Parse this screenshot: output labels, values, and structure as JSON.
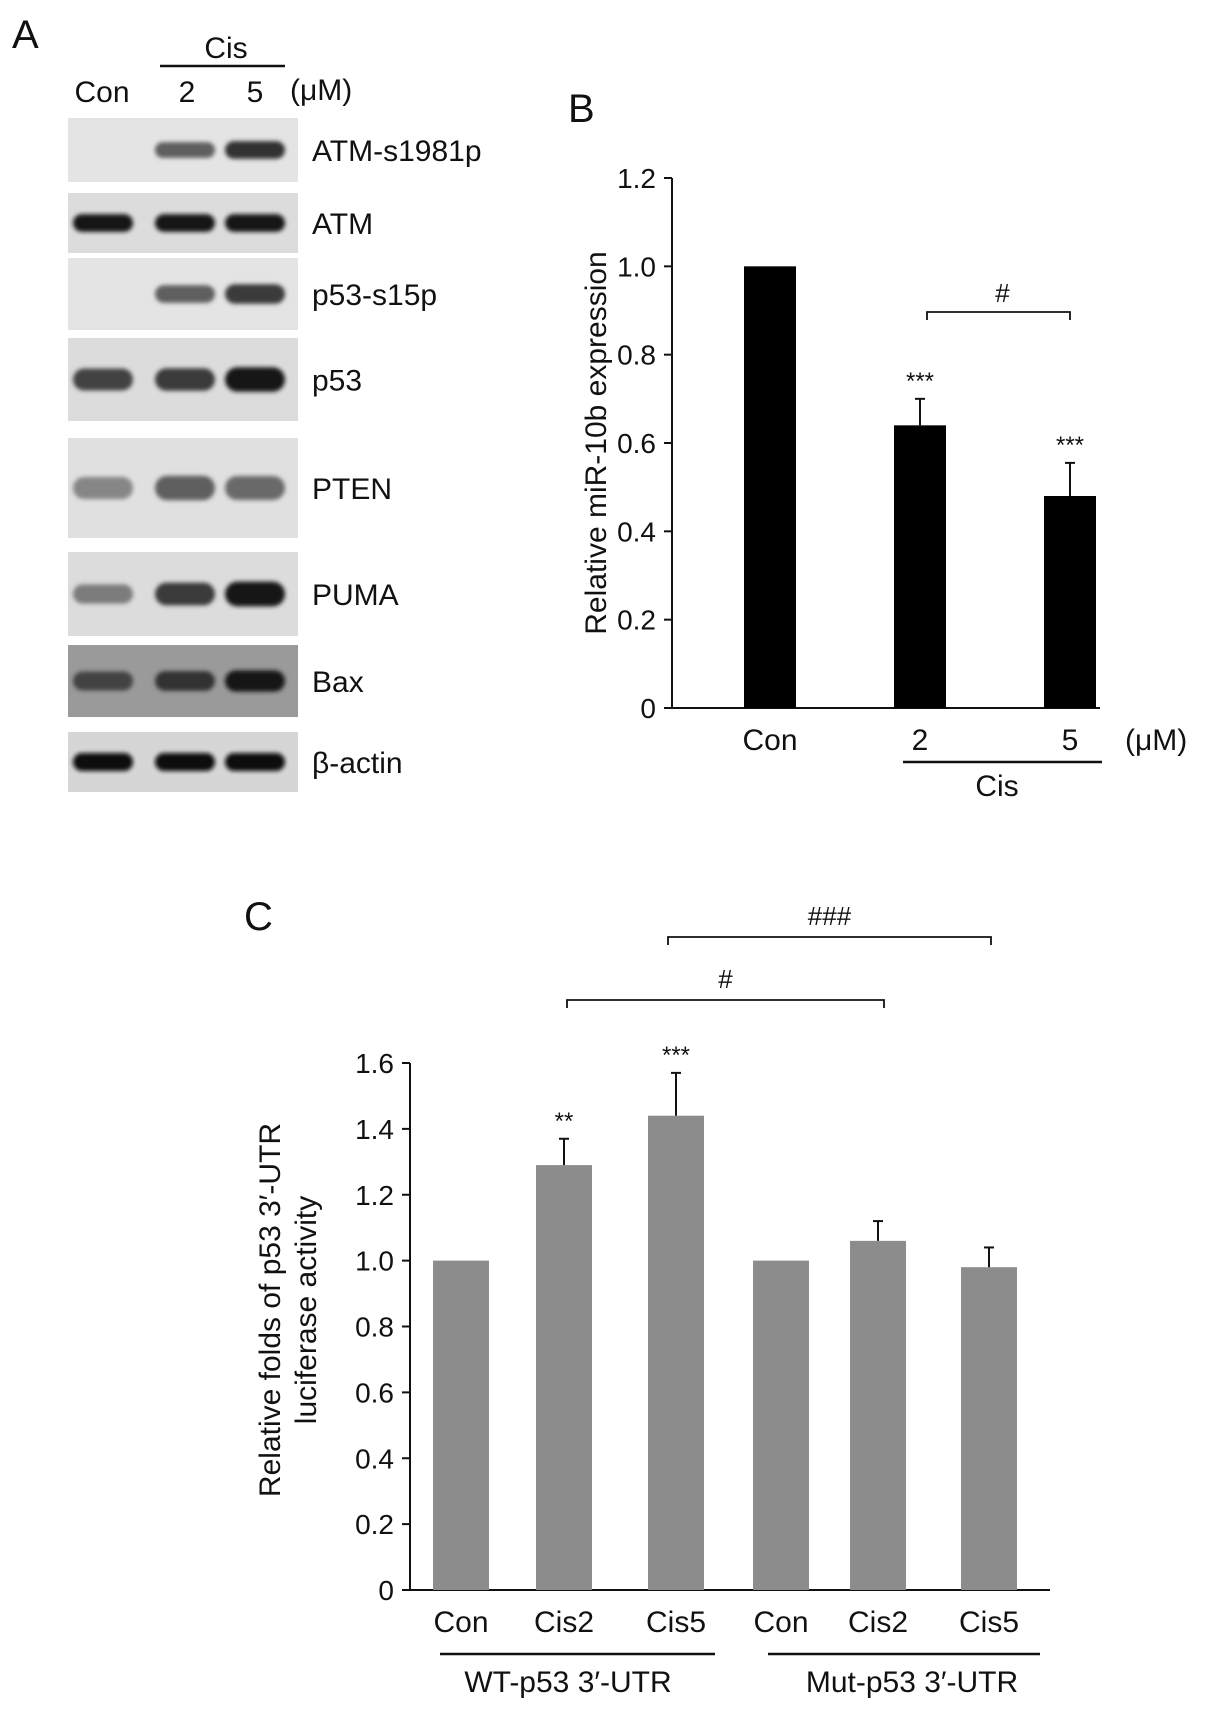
{
  "panel_labels": [
    "A",
    "B",
    "C"
  ],
  "western_blot": {
    "header": {
      "lanes": [
        "Con",
        "2",
        "5"
      ],
      "group_label": "Cis",
      "unit": "(μM)"
    },
    "blots": [
      {
        "label": "ATM-s1981p",
        "bg": "#e4e4e4",
        "bands": [
          0.0,
          0.55,
          0.8
        ]
      },
      {
        "label": "ATM",
        "bg": "#dcdcdc",
        "bands": [
          0.95,
          0.95,
          0.95
        ]
      },
      {
        "label": "p53-s15p",
        "bg": "#e4e4e4",
        "bands": [
          0.0,
          0.55,
          0.75
        ]
      },
      {
        "label": "p53",
        "bg": "#dcdcdc",
        "bands": [
          0.7,
          0.75,
          0.95
        ]
      },
      {
        "label": "PTEN",
        "bg": "#e0e0e0",
        "bands": [
          0.35,
          0.55,
          0.5
        ]
      },
      {
        "label": "PUMA",
        "bg": "#dcdcdc",
        "bands": [
          0.4,
          0.75,
          0.95
        ]
      },
      {
        "label": "Bax",
        "bg": "#9a9a9a",
        "bands": [
          0.7,
          0.8,
          0.95
        ]
      },
      {
        "label": "β-actin",
        "bg": "#d6d6d6",
        "bands": [
          1.0,
          1.0,
          1.0
        ]
      }
    ]
  },
  "chart_data": [
    {
      "type": "bar",
      "panel": "B",
      "ylabel": "Relative miR-10b expression",
      "categories": [
        "Con",
        "2",
        "5"
      ],
      "values": [
        1.0,
        0.64,
        0.48
      ],
      "errors": [
        0,
        0.06,
        0.075
      ],
      "significance": [
        "",
        "***",
        "***"
      ],
      "ylim": [
        0,
        1.2
      ],
      "yticks": [
        "0",
        "0.2",
        "0.4",
        "0.6",
        "0.8",
        "1.0",
        "1.2"
      ],
      "group_label": "Cis",
      "unit_label": "(μM)",
      "comparison": {
        "from": "2",
        "to": "5",
        "label": "#"
      },
      "bar_color": "#000000"
    },
    {
      "type": "bar",
      "panel": "C",
      "ylabel_lines": [
        "Relative folds of p53 3′-UTR",
        "luciferase activity"
      ],
      "categories": [
        "Con",
        "Cis2",
        "Cis5",
        "Con",
        "Cis2",
        "Cis5"
      ],
      "values": [
        1.0,
        1.29,
        1.44,
        1.0,
        1.06,
        0.98
      ],
      "errors": [
        0,
        0.08,
        0.13,
        0,
        0.06,
        0.06
      ],
      "significance": [
        "",
        "**",
        "***",
        "",
        "",
        ""
      ],
      "ylim": [
        0,
        1.6
      ],
      "yticks": [
        "0",
        "0.2",
        "0.4",
        "0.6",
        "0.8",
        "1.0",
        "1.2",
        "1.4",
        "1.6"
      ],
      "groups": [
        "WT-p53 3′-UTR",
        "Mut-p53 3′-UTR"
      ],
      "comparisons": [
        {
          "from_index": 1,
          "to_index": 4,
          "label": "#"
        },
        {
          "from_index": 2,
          "to_index": 5,
          "label": "###"
        }
      ],
      "bar_color": "#8c8c8c"
    }
  ]
}
